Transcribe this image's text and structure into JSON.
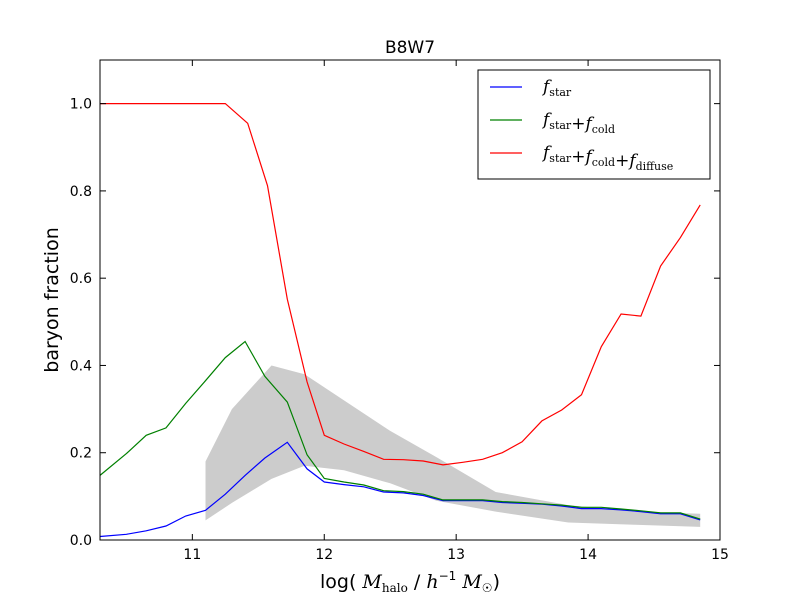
{
  "chart_data": {
    "type": "line",
    "title": "B8W7",
    "xlabel": {
      "prefix": "log( ",
      "m1": "M",
      "m1_sub": "halo",
      "sep": " / ",
      "h": "h",
      "h_sup": "−1",
      "m2": "M",
      "m2_sub": "☉",
      "suffix": ")"
    },
    "ylabel": "baryon fraction",
    "xlim": [
      10.3,
      15.0
    ],
    "ylim": [
      0.0,
      1.1
    ],
    "xticks": [
      11,
      12,
      13,
      14,
      15
    ],
    "yticks": [
      0.0,
      0.2,
      0.4,
      0.6,
      0.8,
      1.0
    ],
    "xtick_labels": [
      "11",
      "12",
      "13",
      "14",
      "15"
    ],
    "ytick_labels": [
      "0.0",
      "0.2",
      "0.4",
      "0.6",
      "0.8",
      "1.0"
    ],
    "legend_position": "top-right",
    "band": {
      "color": "#cccccc",
      "x": [
        11.1,
        11.3,
        11.6,
        11.85,
        12.15,
        12.5,
        12.85,
        13.3,
        13.85,
        14.35,
        14.85
      ],
      "upper": [
        0.18,
        0.3,
        0.4,
        0.38,
        0.32,
        0.25,
        0.19,
        0.11,
        0.08,
        0.065,
        0.06
      ],
      "lower": [
        0.045,
        0.085,
        0.14,
        0.17,
        0.16,
        0.13,
        0.09,
        0.065,
        0.04,
        0.035,
        0.03
      ]
    },
    "series": [
      {
        "key": "star",
        "color": "#0000ff",
        "legend": {
          "base": "f",
          "terms": [
            "star"
          ]
        },
        "x": [
          10.3,
          10.5,
          10.65,
          10.8,
          10.95,
          11.1,
          11.25,
          11.4,
          11.55,
          11.72,
          11.87,
          12.0,
          12.15,
          12.3,
          12.45,
          12.6,
          12.75,
          12.9,
          13.05,
          13.2,
          13.35,
          13.5,
          13.65,
          13.8,
          13.95,
          14.1,
          14.25,
          14.4,
          14.55,
          14.7,
          14.85
        ],
        "y": [
          0.008,
          0.013,
          0.021,
          0.032,
          0.055,
          0.068,
          0.105,
          0.148,
          0.188,
          0.224,
          0.163,
          0.133,
          0.127,
          0.122,
          0.11,
          0.108,
          0.102,
          0.09,
          0.09,
          0.09,
          0.086,
          0.084,
          0.082,
          0.078,
          0.072,
          0.072,
          0.069,
          0.065,
          0.06,
          0.06,
          0.046
        ]
      },
      {
        "key": "cold",
        "color": "#008000",
        "legend": {
          "base": "f",
          "terms": [
            "star",
            "cold"
          ]
        },
        "x": [
          10.3,
          10.5,
          10.65,
          10.8,
          10.95,
          11.1,
          11.25,
          11.4,
          11.55,
          11.72,
          11.87,
          12.0,
          12.15,
          12.3,
          12.45,
          12.6,
          12.75,
          12.9,
          13.05,
          13.2,
          13.35,
          13.5,
          13.65,
          13.8,
          13.95,
          14.1,
          14.25,
          14.4,
          14.55,
          14.7,
          14.85
        ],
        "y": [
          0.148,
          0.198,
          0.24,
          0.257,
          0.313,
          0.365,
          0.418,
          0.455,
          0.375,
          0.316,
          0.195,
          0.141,
          0.133,
          0.126,
          0.113,
          0.111,
          0.105,
          0.092,
          0.092,
          0.092,
          0.088,
          0.086,
          0.083,
          0.08,
          0.075,
          0.075,
          0.071,
          0.067,
          0.062,
          0.062,
          0.048
        ]
      },
      {
        "key": "diffuse",
        "color": "#ff0000",
        "legend": {
          "base": "f",
          "terms": [
            "star",
            "cold",
            "diffuse"
          ]
        },
        "x": [
          10.3,
          10.5,
          10.65,
          10.8,
          10.95,
          11.1,
          11.25,
          11.42,
          11.57,
          11.72,
          11.87,
          12.0,
          12.15,
          12.3,
          12.45,
          12.6,
          12.75,
          12.9,
          13.05,
          13.2,
          13.35,
          13.5,
          13.65,
          13.8,
          13.95,
          14.1,
          14.25,
          14.4,
          14.55,
          14.7,
          14.85
        ],
        "y": [
          1.0,
          1.0,
          1.0,
          1.0,
          1.0,
          1.0,
          1.0,
          0.955,
          0.812,
          0.552,
          0.362,
          0.24,
          0.22,
          0.203,
          0.185,
          0.184,
          0.181,
          0.172,
          0.178,
          0.185,
          0.2,
          0.225,
          0.273,
          0.298,
          0.333,
          0.443,
          0.518,
          0.513,
          0.628,
          0.693,
          0.768
        ]
      }
    ]
  }
}
